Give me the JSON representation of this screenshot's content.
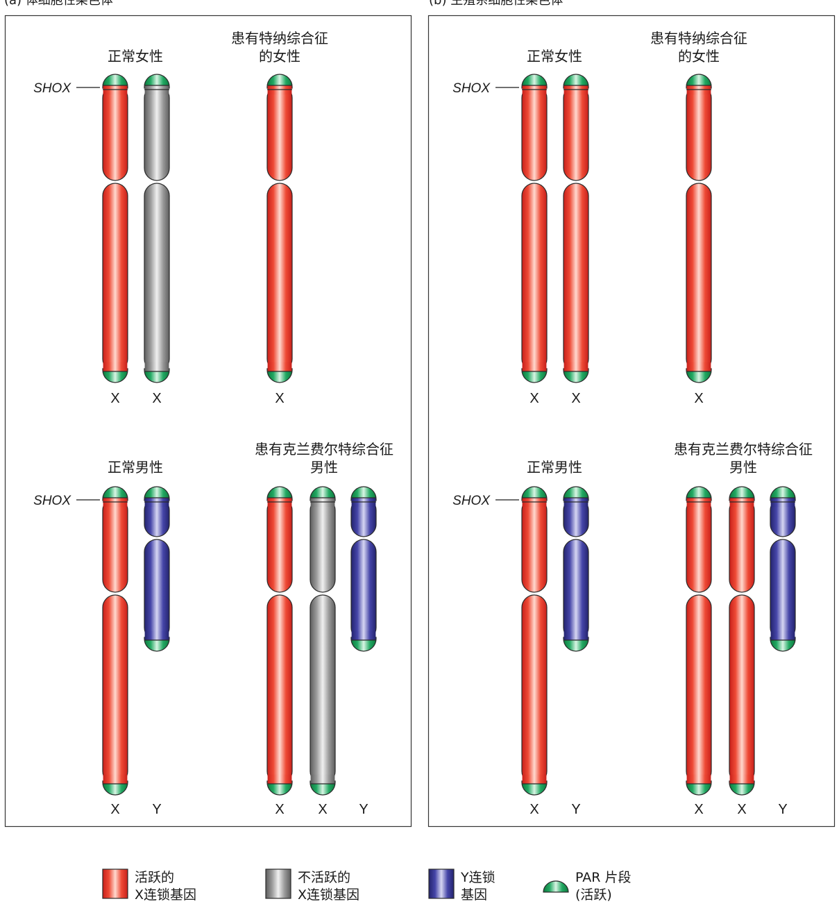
{
  "panels": [
    {
      "label": "(a) 体细胞性染色体",
      "groups": [
        {
          "title": [
            "正常女性"
          ],
          "chromosomes": [
            {
              "type": "X",
              "state": "active",
              "label": "X",
              "shox": true
            },
            {
              "type": "X",
              "state": "inactive",
              "label": "X"
            }
          ]
        },
        {
          "title": [
            "患有特纳综合征",
            "的女性"
          ],
          "chromosomes": [
            {
              "type": "X",
              "state": "active",
              "label": "X"
            }
          ]
        },
        {
          "title": [
            "正常男性"
          ],
          "chromosomes": [
            {
              "type": "X",
              "state": "active",
              "label": "X",
              "shox": true
            },
            {
              "type": "Y",
              "state": "y",
              "label": "Y"
            }
          ]
        },
        {
          "title": [
            "患有克兰费尔特综合征",
            "男性"
          ],
          "chromosomes": [
            {
              "type": "X",
              "state": "active",
              "label": "X"
            },
            {
              "type": "X",
              "state": "inactive",
              "label": "X"
            },
            {
              "type": "Y",
              "state": "y",
              "label": "Y"
            }
          ]
        }
      ]
    },
    {
      "label": "(b) 生殖系细胞性染色体",
      "groups": [
        {
          "title": [
            "正常女性"
          ],
          "chromosomes": [
            {
              "type": "X",
              "state": "active",
              "label": "X",
              "shox": true
            },
            {
              "type": "X",
              "state": "active",
              "label": "X"
            }
          ]
        },
        {
          "title": [
            "患有特纳综合征",
            "的女性"
          ],
          "chromosomes": [
            {
              "type": "X",
              "state": "active",
              "label": "X"
            }
          ]
        },
        {
          "title": [
            "正常男性"
          ],
          "chromosomes": [
            {
              "type": "X",
              "state": "active",
              "label": "X",
              "shox": true
            },
            {
              "type": "Y",
              "state": "y",
              "label": "Y"
            }
          ]
        },
        {
          "title": [
            "患有克兰费尔特综合征",
            "男性"
          ],
          "chromosomes": [
            {
              "type": "X",
              "state": "active",
              "label": "X"
            },
            {
              "type": "X",
              "state": "active",
              "label": "X"
            },
            {
              "type": "Y",
              "state": "y",
              "label": "Y"
            }
          ]
        }
      ]
    }
  ],
  "shox_label": "SHOX",
  "legend": [
    {
      "key": "active",
      "lines": [
        "活跃的",
        "X连锁基因"
      ]
    },
    {
      "key": "inactive",
      "lines": [
        "不活跃的",
        "X连锁基因"
      ]
    },
    {
      "key": "y",
      "lines": [
        "Y连锁",
        "基因"
      ]
    },
    {
      "key": "par",
      "lines": [
        "PAR 片段",
        "(活跃)"
      ]
    }
  ],
  "colors": {
    "active": "#e8372a",
    "inactive": "#8c8c8c",
    "y": "#3a3a9a",
    "par": "#1aa05a",
    "border": "#333333"
  }
}
